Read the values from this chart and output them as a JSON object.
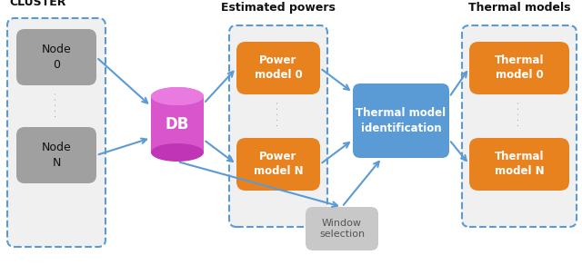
{
  "bg_color": "#ffffff",
  "cluster_label": "CLUSTER",
  "estimated_powers_label": "Estimated powers",
  "thermal_models_label": "Thermal models",
  "node0_text": "Node\n0",
  "nodeN_text": "Node\nN",
  "db_text": "DB",
  "power0_text": "Power\nmodel 0",
  "powerN_text": "Power\nmodel N",
  "thermal_id_text": "Thermal model\nidentification",
  "window_text": "Window\nselection",
  "thermal0_text": "Thermal\nmodel 0",
  "thermalN_text": "Thermal\nmodel N",
  "dots": "· · · · ·",
  "node_color": "#a0a0a0",
  "orange_color": "#e8821e",
  "blue_color": "#5b9bd5",
  "gray_color": "#b0b0b0",
  "dashed_border_color": "#5b9bd5",
  "arrow_color": "#5b9bd5",
  "text_white": "#ffffff",
  "text_dark": "#333333",
  "text_black": "#111111",
  "db_body_color": "#d855cc",
  "db_top_color": "#e87ae0",
  "db_bot_color": "#c035b5",
  "node_text_color": "#111111",
  "dots_color": "#5b9bd5",
  "window_fill": "#c8c8c8",
  "window_text_color": "#555555"
}
